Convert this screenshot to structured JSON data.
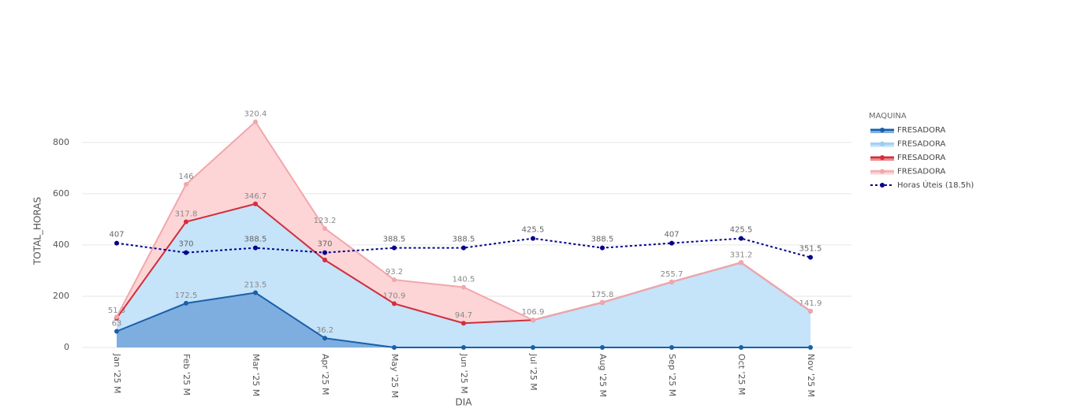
{
  "chart_data": {
    "type": "stacked-area",
    "x_label": "DIA",
    "y_label": "TOTAL_HORAS",
    "legend_title": "MAQUINA",
    "categories": [
      "Jan '25 M",
      "Feb '25 M",
      "Mar '25 M",
      "Apr '25 M",
      "May '25 M",
      "Jun '25 M",
      "Jul '25 M",
      "Aug '25 M",
      "Sep '25 M",
      "Oct '25 M",
      "Nov '25 M"
    ],
    "ylim": [
      0,
      910
    ],
    "yticks": [
      0,
      200,
      400,
      600,
      800
    ],
    "grid": true,
    "legend": "right",
    "series": [
      {
        "name": "FRESADORA",
        "color": "#1a5fa8",
        "fill": "#7eaee0",
        "values": [
          63,
          172.5,
          213.5,
          36.2,
          0,
          0,
          0,
          0,
          0,
          0,
          0
        ],
        "value_labels": [
          "63",
          "172.5",
          "213.5",
          "36.2",
          null,
          null,
          null,
          null,
          null,
          null,
          null
        ]
      },
      {
        "name": "FRESADORA",
        "color": "#9ccaf0",
        "fill": "#c2e1f9",
        "values": [
          51.3,
          317.8,
          346.7,
          305,
          170.9,
          94.7,
          106.9,
          175.8,
          255.7,
          331.2,
          141.9
        ],
        "value_labels": [
          "51.3",
          "317.8",
          "346.7",
          null,
          "170.9",
          "94.7",
          "106.9",
          "175.8",
          "255.7",
          "331.2",
          "141.9"
        ]
      },
      {
        "name": "FRESADORA",
        "color": "#d42f3a",
        "fill": "#e88a90",
        "values": [
          0,
          0,
          0,
          0,
          0,
          0,
          0,
          0,
          0,
          0,
          0
        ],
        "value_labels": [
          null,
          null,
          null,
          null,
          null,
          null,
          null,
          null,
          null,
          null,
          null
        ]
      },
      {
        "name": "FRESADORA",
        "color": "#f2a7ab",
        "fill": "#fdd3d5",
        "values": [
          5,
          146,
          320.4,
          123.2,
          93.2,
          140.5,
          0,
          0,
          0,
          0,
          0
        ],
        "value_labels": [
          null,
          "146",
          "320.4",
          "123.2",
          "93.2",
          "140.5",
          null,
          null,
          null,
          null,
          null
        ]
      }
    ],
    "line_series": {
      "name": "Horas Úteis (18.5h)",
      "color": "#00008b",
      "dash": "3,3",
      "values": [
        407,
        370,
        388.5,
        370,
        388.5,
        388.5,
        425.5,
        388.5,
        407,
        425.5,
        351.5
      ]
    }
  }
}
